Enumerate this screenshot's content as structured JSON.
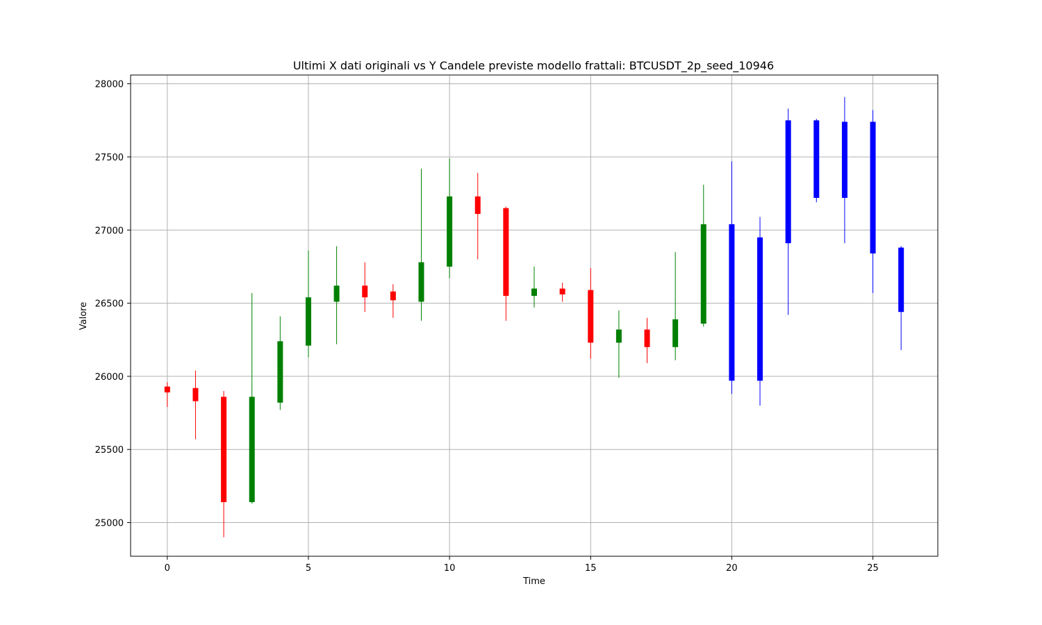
{
  "chart_data": {
    "type": "candlestick",
    "title": "Ultimi X dati originali vs Y Candele previste modello frattali: BTCUSDT_2p_seed_10946",
    "xlabel": "Time",
    "ylabel": "Valore",
    "xlim": [
      -1.3,
      27.3
    ],
    "ylim": [
      24770,
      28060
    ],
    "xticks": [
      0,
      5,
      10,
      15,
      20,
      25
    ],
    "yticks": [
      25000,
      25500,
      26000,
      26500,
      27000,
      27500,
      28000
    ],
    "grid": true,
    "colors": {
      "up": "#008000",
      "down": "#ff0000",
      "predicted": "#0000ff",
      "grid": "#b0b0b0"
    },
    "series": [
      {
        "name": "originali",
        "candles": [
          {
            "t": 0,
            "open": 25930,
            "high": 25960,
            "low": 25790,
            "close": 25890
          },
          {
            "t": 1,
            "open": 25920,
            "high": 26040,
            "low": 25570,
            "close": 25830
          },
          {
            "t": 2,
            "open": 25860,
            "high": 25900,
            "low": 24900,
            "close": 25140
          },
          {
            "t": 3,
            "open": 25140,
            "high": 26570,
            "low": 25130,
            "close": 25860
          },
          {
            "t": 4,
            "open": 25820,
            "high": 26410,
            "low": 25770,
            "close": 26240
          },
          {
            "t": 5,
            "open": 26210,
            "high": 26860,
            "low": 26130,
            "close": 26540
          },
          {
            "t": 6,
            "open": 26510,
            "high": 26890,
            "low": 26220,
            "close": 26620
          },
          {
            "t": 7,
            "open": 26620,
            "high": 26780,
            "low": 26440,
            "close": 26540
          },
          {
            "t": 8,
            "open": 26580,
            "high": 26630,
            "low": 26400,
            "close": 26520
          },
          {
            "t": 9,
            "open": 26510,
            "high": 27420,
            "low": 26380,
            "close": 26780
          },
          {
            "t": 10,
            "open": 26750,
            "high": 27490,
            "low": 26670,
            "close": 27230
          },
          {
            "t": 11,
            "open": 27230,
            "high": 27390,
            "low": 26800,
            "close": 27110
          },
          {
            "t": 12,
            "open": 27150,
            "high": 27160,
            "low": 26380,
            "close": 26550
          },
          {
            "t": 13,
            "open": 26550,
            "high": 26750,
            "low": 26470,
            "close": 26600
          },
          {
            "t": 14,
            "open": 26600,
            "high": 26640,
            "low": 26510,
            "close": 26560
          },
          {
            "t": 15,
            "open": 26590,
            "high": 26740,
            "low": 26120,
            "close": 26230
          },
          {
            "t": 16,
            "open": 26230,
            "high": 26450,
            "low": 25990,
            "close": 26320
          },
          {
            "t": 17,
            "open": 26320,
            "high": 26400,
            "low": 26090,
            "close": 26200
          },
          {
            "t": 18,
            "open": 26200,
            "high": 26850,
            "low": 26110,
            "close": 26390
          },
          {
            "t": 19,
            "open": 26360,
            "high": 27310,
            "low": 26340,
            "close": 27040
          }
        ]
      },
      {
        "name": "previste",
        "candles": [
          {
            "t": 20,
            "open": 25970,
            "high": 27470,
            "low": 25880,
            "close": 27040
          },
          {
            "t": 21,
            "open": 25970,
            "high": 27090,
            "low": 25800,
            "close": 26950
          },
          {
            "t": 22,
            "open": 26910,
            "high": 27830,
            "low": 26420,
            "close": 27750
          },
          {
            "t": 23,
            "open": 27220,
            "high": 27760,
            "low": 27190,
            "close": 27750
          },
          {
            "t": 24,
            "open": 27220,
            "high": 27910,
            "low": 26910,
            "close": 27740
          },
          {
            "t": 25,
            "open": 26840,
            "high": 27820,
            "low": 26570,
            "close": 27740
          },
          {
            "t": 26,
            "open": 26440,
            "high": 26890,
            "low": 26180,
            "close": 26880
          }
        ]
      }
    ]
  }
}
